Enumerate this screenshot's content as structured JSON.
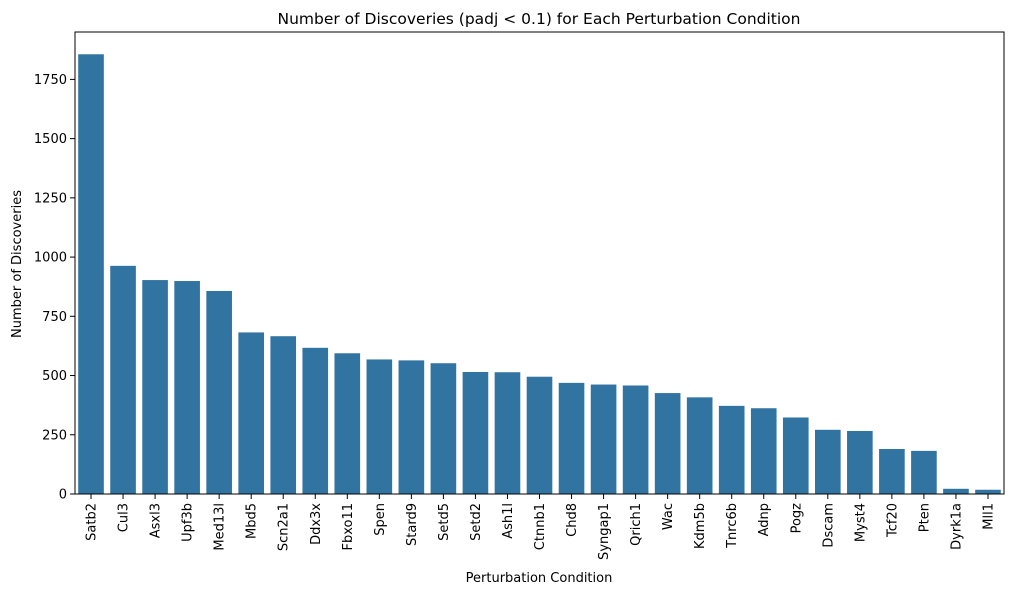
{
  "chart_data": {
    "type": "bar",
    "title": "Number of Discoveries (padj < 0.1) for Each Perturbation Condition",
    "xlabel": "Perturbation Condition",
    "ylabel": "Number of Discoveries",
    "ylim": [
      0,
      1950
    ],
    "yticks": [
      0,
      250,
      500,
      750,
      1000,
      1250,
      1500,
      1750
    ],
    "grid": false,
    "legend": "none",
    "bar_color": "#3274a1",
    "categories": [
      "Satb2",
      "Cul3",
      "Asxl3",
      "Upf3b",
      "Med13l",
      "Mbd5",
      "Scn2a1",
      "Ddx3x",
      "Fbxo11",
      "Spen",
      "Stard9",
      "Setd5",
      "Setd2",
      "Ash1l",
      "Ctnnb1",
      "Chd8",
      "Syngap1",
      "Qrich1",
      "Wac",
      "Kdm5b",
      "Tnrc6b",
      "Adnp",
      "Pogz",
      "Dscam",
      "Myst4",
      "Tcf20",
      "Pten",
      "Dyrk1a",
      "Mll1"
    ],
    "values": [
      1856,
      963,
      903,
      899,
      857,
      682,
      666,
      617,
      594,
      568,
      564,
      552,
      515,
      514,
      495,
      469,
      462,
      458,
      426,
      408,
      372,
      362,
      323,
      271,
      266,
      190,
      182,
      22,
      18
    ]
  }
}
